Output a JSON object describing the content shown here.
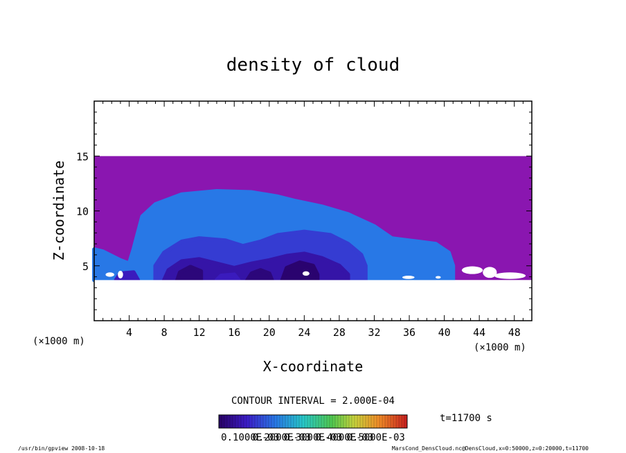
{
  "chart_data": {
    "type": "heatmap",
    "title": "density of cloud",
    "xlabel": "X-coordinate",
    "ylabel": "Z-coordinate",
    "x_unit": "(×1000 m)",
    "y_unit": "(×1000 m)",
    "xlim": [
      0,
      50
    ],
    "ylim": [
      0,
      20
    ],
    "x_ticks": [
      4,
      8,
      12,
      16,
      20,
      24,
      28,
      32,
      36,
      40,
      44,
      48
    ],
    "y_ticks": [
      5,
      10,
      15
    ],
    "field_extent": {
      "x": [
        0,
        50
      ],
      "z": [
        3.7,
        15
      ]
    },
    "background_value": 0.00022,
    "regions": [
      {
        "points": [
          [
            0,
            3.7
          ],
          [
            0,
            6.5
          ],
          [
            1,
            6.3
          ],
          [
            3,
            5.5
          ],
          [
            4,
            5.2
          ],
          [
            4.5,
            6.5
          ],
          [
            5,
            8
          ],
          [
            5.5,
            9.5
          ],
          [
            7,
            10.6
          ],
          [
            10,
            11.5
          ],
          [
            14,
            11.8
          ],
          [
            18,
            11.7
          ],
          [
            21,
            11.3
          ],
          [
            23,
            10.9
          ],
          [
            26,
            10.4
          ],
          [
            29,
            9.7
          ],
          [
            32,
            8.6
          ],
          [
            34,
            7.5
          ],
          [
            36,
            7.3
          ],
          [
            37,
            7.2
          ],
          [
            39,
            7
          ],
          [
            40.5,
            6.2
          ],
          [
            41,
            5
          ],
          [
            41,
            3.7
          ]
        ],
        "value": 0.00018
      },
      {
        "points": [
          [
            7,
            3.7
          ],
          [
            7,
            5
          ],
          [
            8,
            6.2
          ],
          [
            10,
            7.2
          ],
          [
            12,
            7.5
          ],
          [
            15,
            7.3
          ],
          [
            17,
            6.8
          ],
          [
            19,
            7.2
          ],
          [
            21,
            7.8
          ],
          [
            24,
            8.1
          ],
          [
            27,
            7.8
          ],
          [
            29,
            7
          ],
          [
            30.5,
            6
          ],
          [
            31,
            5
          ],
          [
            31,
            3.7
          ]
        ],
        "value": 0.00012
      },
      {
        "points": [
          [
            8,
            3.7
          ],
          [
            8.5,
            4.6
          ],
          [
            10,
            5.4
          ],
          [
            12,
            5.6
          ],
          [
            14,
            5.2
          ],
          [
            16,
            4.8
          ],
          [
            18,
            5.2
          ],
          [
            20,
            5.5
          ],
          [
            22,
            5.9
          ],
          [
            24,
            6.1
          ],
          [
            26,
            5.7
          ],
          [
            28,
            5
          ],
          [
            29,
            4.2
          ],
          [
            29,
            3.7
          ]
        ],
        "value": 6e-05
      },
      {
        "points": [
          [
            9.5,
            3.7
          ],
          [
            9.8,
            4.4
          ],
          [
            11,
            4.9
          ],
          [
            12.2,
            4.5
          ],
          [
            12.2,
            3.7
          ]
        ],
        "value": 2e-05
      },
      {
        "points": [
          [
            17.5,
            3.7
          ],
          [
            18,
            4.3
          ],
          [
            19,
            4.6
          ],
          [
            20,
            4.3
          ],
          [
            20.3,
            3.7
          ]
        ],
        "value": 2e-05
      },
      {
        "points": [
          [
            21.5,
            3.7
          ],
          [
            22,
            4.8
          ],
          [
            23.5,
            5.3
          ],
          [
            25,
            5
          ],
          [
            25.5,
            4.2
          ],
          [
            25.5,
            3.7
          ]
        ],
        "value": 1e-05
      },
      {
        "points": [
          [
            2.5,
            3.7
          ],
          [
            3,
            4.3
          ],
          [
            4.5,
            4.4
          ],
          [
            5,
            3.7
          ]
        ],
        "value": 8e-05
      },
      {
        "points": [
          [
            14,
            3.7
          ],
          [
            14.5,
            4.1
          ],
          [
            16,
            4.2
          ],
          [
            16.5,
            3.7
          ]
        ],
        "value": 8e-05
      }
    ],
    "colorbar": {
      "levels": [
        0.0001,
        0.0002,
        0.0003,
        0.0004,
        0.0005
      ],
      "labels": [
        "0.1000E-03",
        "0.2000E-03",
        "0.3000E-03",
        "0.4000E-03",
        "0.5000E-03"
      ],
      "range": [
        0,
        0.0006
      ],
      "colormap": "rainbow"
    },
    "contour_interval": "CONTOUR INTERVAL = 2.000E-04",
    "time_label": "t=11700 s",
    "missing_color": "#ffffff"
  },
  "footer": {
    "left": "/usr/bin/gpview  2008-10-18",
    "right": "MarsCond_DensCloud.nc@DensCloud,x=0:50000,z=0:20000,t=11700"
  }
}
